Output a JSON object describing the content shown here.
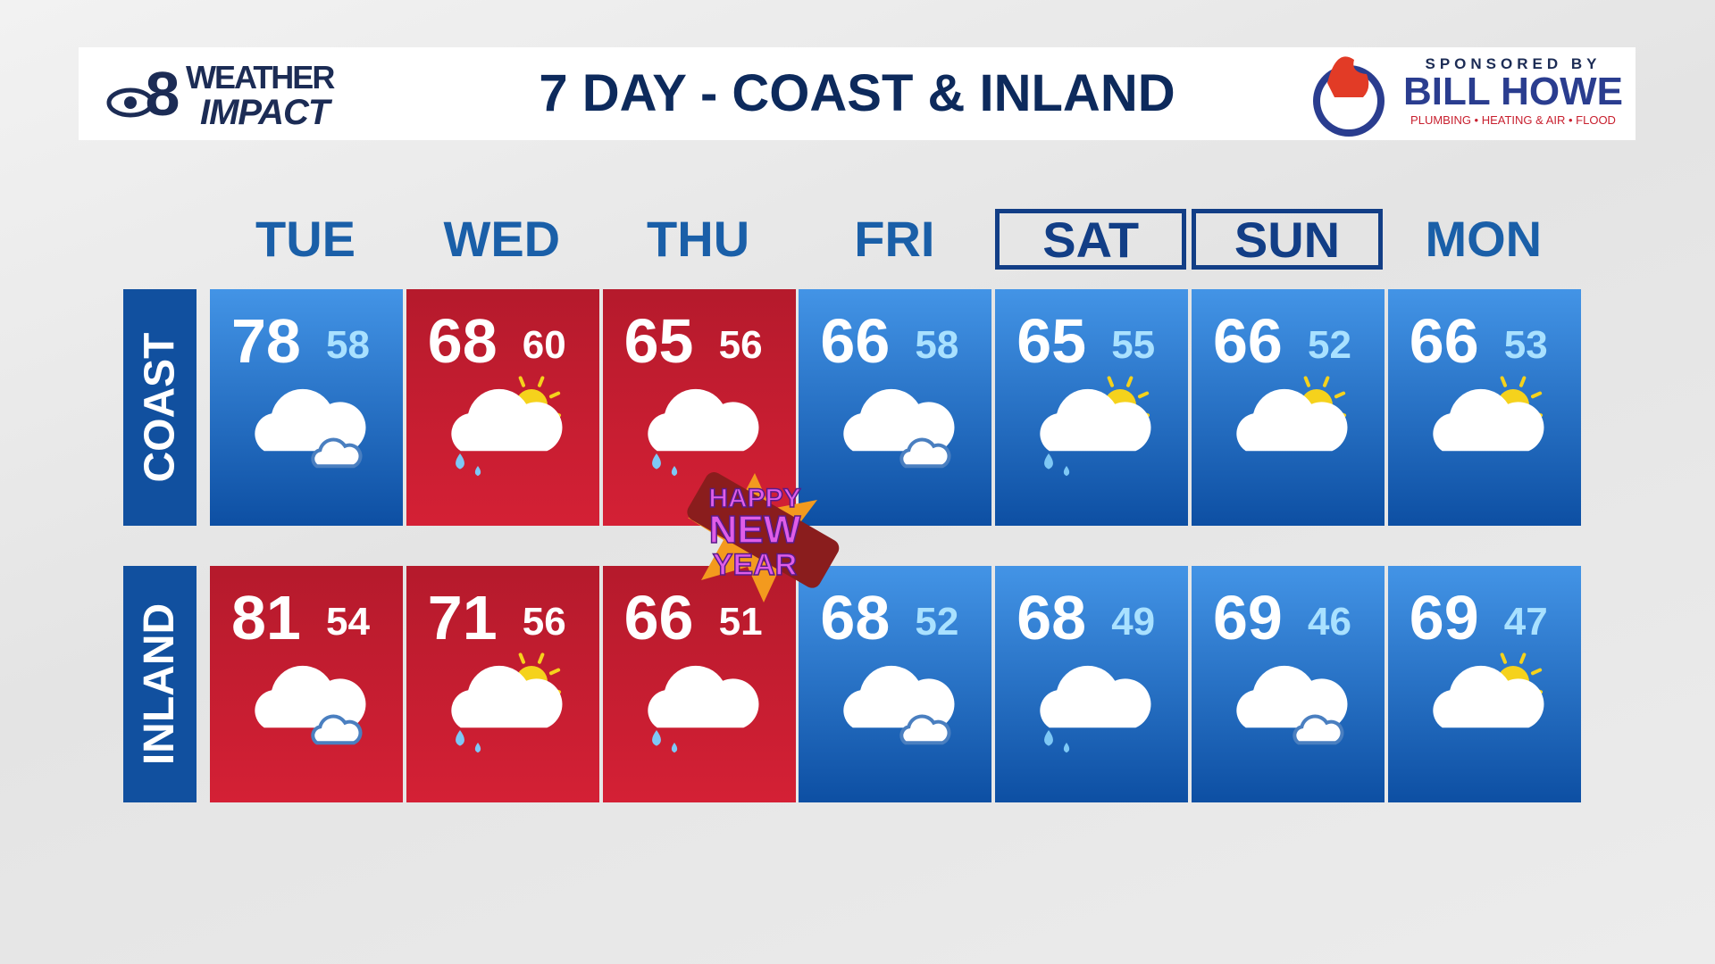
{
  "header": {
    "title": "7 DAY - COAST & INLAND",
    "logo": {
      "number": "8",
      "line1": "WEATHER",
      "line2": "IMPACT"
    },
    "sponsor": {
      "label": "SPONSORED BY",
      "name": "BILL HOWE",
      "services": "PLUMBING • HEATING & AIR • FLOOD"
    }
  },
  "days": [
    "TUE",
    "WED",
    "THU",
    "FRI",
    "SAT",
    "SUN",
    "MON"
  ],
  "rows": [
    {
      "label": "COAST",
      "highs": [
        78,
        68,
        65,
        66,
        65,
        66,
        66
      ],
      "lows": [
        58,
        60,
        56,
        58,
        55,
        52,
        53
      ]
    },
    {
      "label": "INLAND",
      "highs": [
        81,
        71,
        66,
        68,
        68,
        69,
        69
      ],
      "lows": [
        54,
        56,
        51,
        52,
        49,
        46,
        47
      ]
    }
  ],
  "sticker": {
    "lines": [
      "HAPPY",
      "NEW",
      "YEAR"
    ]
  }
}
